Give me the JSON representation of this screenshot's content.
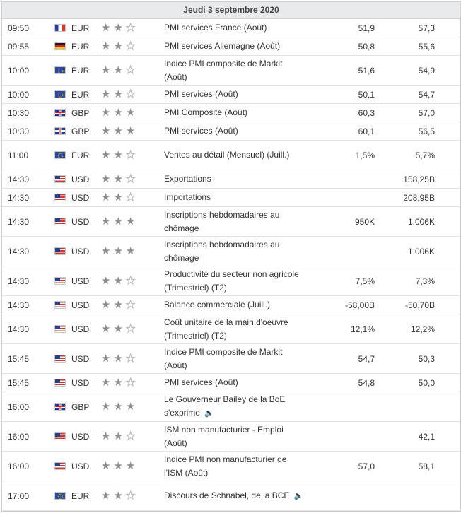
{
  "header": {
    "date_label": "Jeudi 3 septembre 2020"
  },
  "events": [
    {
      "time": "09:50",
      "flag_icon": "flag-france-icon",
      "flag": "fr",
      "currency": "EUR",
      "importance": 2,
      "event": "PMI services France (Août)",
      "actual": "51,9",
      "forecast": "57,3",
      "lines": 1
    },
    {
      "time": "09:55",
      "flag_icon": "flag-germany-icon",
      "flag": "de",
      "currency": "EUR",
      "importance": 2,
      "event": "PMI services Allemagne (Août)",
      "actual": "50,8",
      "forecast": "55,6",
      "lines": 1
    },
    {
      "time": "10:00",
      "flag_icon": "flag-eu-icon",
      "flag": "eu",
      "currency": "EUR",
      "importance": 2,
      "event": "Indice PMI composite de Markit (Août)",
      "actual": "51,6",
      "forecast": "54,9",
      "lines": 2
    },
    {
      "time": "10:00",
      "flag_icon": "flag-eu-icon",
      "flag": "eu",
      "currency": "EUR",
      "importance": 2,
      "event": "PMI services (Août)",
      "actual": "50,1",
      "forecast": "54,7",
      "lines": 1
    },
    {
      "time": "10:30",
      "flag_icon": "flag-uk-icon",
      "flag": "gb",
      "currency": "GBP",
      "importance": 3,
      "event": "PMI Composite (Août)",
      "actual": "60,3",
      "forecast": "57,0",
      "lines": 1
    },
    {
      "time": "10:30",
      "flag_icon": "flag-uk-icon",
      "flag": "gb",
      "currency": "GBP",
      "importance": 3,
      "event": "PMI services (Août)",
      "actual": "60,1",
      "forecast": "56,5",
      "lines": 1
    },
    {
      "time": "11:00",
      "flag_icon": "flag-eu-icon",
      "flag": "eu",
      "currency": "EUR",
      "importance": 2,
      "event": "Ventes au détail (Mensuel) (Juill.)",
      "actual": "1,5%",
      "forecast": "5,7%",
      "lines": 2
    },
    {
      "time": "14:30",
      "flag_icon": "flag-us-icon",
      "flag": "us",
      "currency": "USD",
      "importance": 2,
      "event": "Exportations",
      "actual": "",
      "forecast": "158,25B",
      "lines": 1
    },
    {
      "time": "14:30",
      "flag_icon": "flag-us-icon",
      "flag": "us",
      "currency": "USD",
      "importance": 2,
      "event": "Importations",
      "actual": "",
      "forecast": "208,95B",
      "lines": 1
    },
    {
      "time": "14:30",
      "flag_icon": "flag-us-icon",
      "flag": "us",
      "currency": "USD",
      "importance": 3,
      "event": "Inscriptions hebdomadaires au chômage",
      "actual": "950K",
      "forecast": "1.006K",
      "lines": 2
    },
    {
      "time": "14:30",
      "flag_icon": "flag-us-icon",
      "flag": "us",
      "currency": "USD",
      "importance": 3,
      "event": "Inscriptions hebdomadaires au chômage",
      "actual": "",
      "forecast": "1.006K",
      "lines": 2
    },
    {
      "time": "14:30",
      "flag_icon": "flag-us-icon",
      "flag": "us",
      "currency": "USD",
      "importance": 2,
      "event": "Productivité du secteur non agricole (Trimestriel) (T2)",
      "actual": "7,5%",
      "forecast": "7,3%",
      "lines": 2
    },
    {
      "time": "14:30",
      "flag_icon": "flag-us-icon",
      "flag": "us",
      "currency": "USD",
      "importance": 2,
      "event": "Balance commerciale (Juill.)",
      "actual": "-58,00B",
      "forecast": "-50,70B",
      "lines": 1
    },
    {
      "time": "14:30",
      "flag_icon": "flag-us-icon",
      "flag": "us",
      "currency": "USD",
      "importance": 2,
      "event": "Coût unitaire de la main d'oeuvre (Trimestriel) (T2)",
      "actual": "12,1%",
      "forecast": "12,2%",
      "lines": 2
    },
    {
      "time": "15:45",
      "flag_icon": "flag-us-icon",
      "flag": "us",
      "currency": "USD",
      "importance": 2,
      "event": "Indice PMI composite de Markit (Août)",
      "actual": "54,7",
      "forecast": "50,3",
      "lines": 2
    },
    {
      "time": "15:45",
      "flag_icon": "flag-us-icon",
      "flag": "us",
      "currency": "USD",
      "importance": 2,
      "event": "PMI services (Août)",
      "actual": "54,8",
      "forecast": "50,0",
      "lines": 1
    },
    {
      "time": "16:00",
      "flag_icon": "flag-uk-icon",
      "flag": "gb",
      "currency": "GBP",
      "importance": 3,
      "event": "Le Gouverneur Bailey de la BoE s'exprime",
      "actual": "",
      "forecast": "",
      "lines": 2,
      "speaker": true
    },
    {
      "time": "16:00",
      "flag_icon": "flag-us-icon",
      "flag": "us",
      "currency": "USD",
      "importance": 2,
      "event": "ISM non manufacturier - Emploi (Août)",
      "actual": "",
      "forecast": "42,1",
      "lines": 2
    },
    {
      "time": "16:00",
      "flag_icon": "flag-us-icon",
      "flag": "us",
      "currency": "USD",
      "importance": 3,
      "event": "Indice PMI non manufacturier de l'ISM (Août)",
      "actual": "57,0",
      "forecast": "58,1",
      "lines": 2
    },
    {
      "time": "17:00",
      "flag_icon": "flag-eu-icon",
      "flag": "eu",
      "currency": "EUR",
      "importance": 2,
      "event": "Discours de Schnabel, de la BCE",
      "actual": "",
      "forecast": "",
      "lines": 2,
      "speaker": true
    }
  ]
}
